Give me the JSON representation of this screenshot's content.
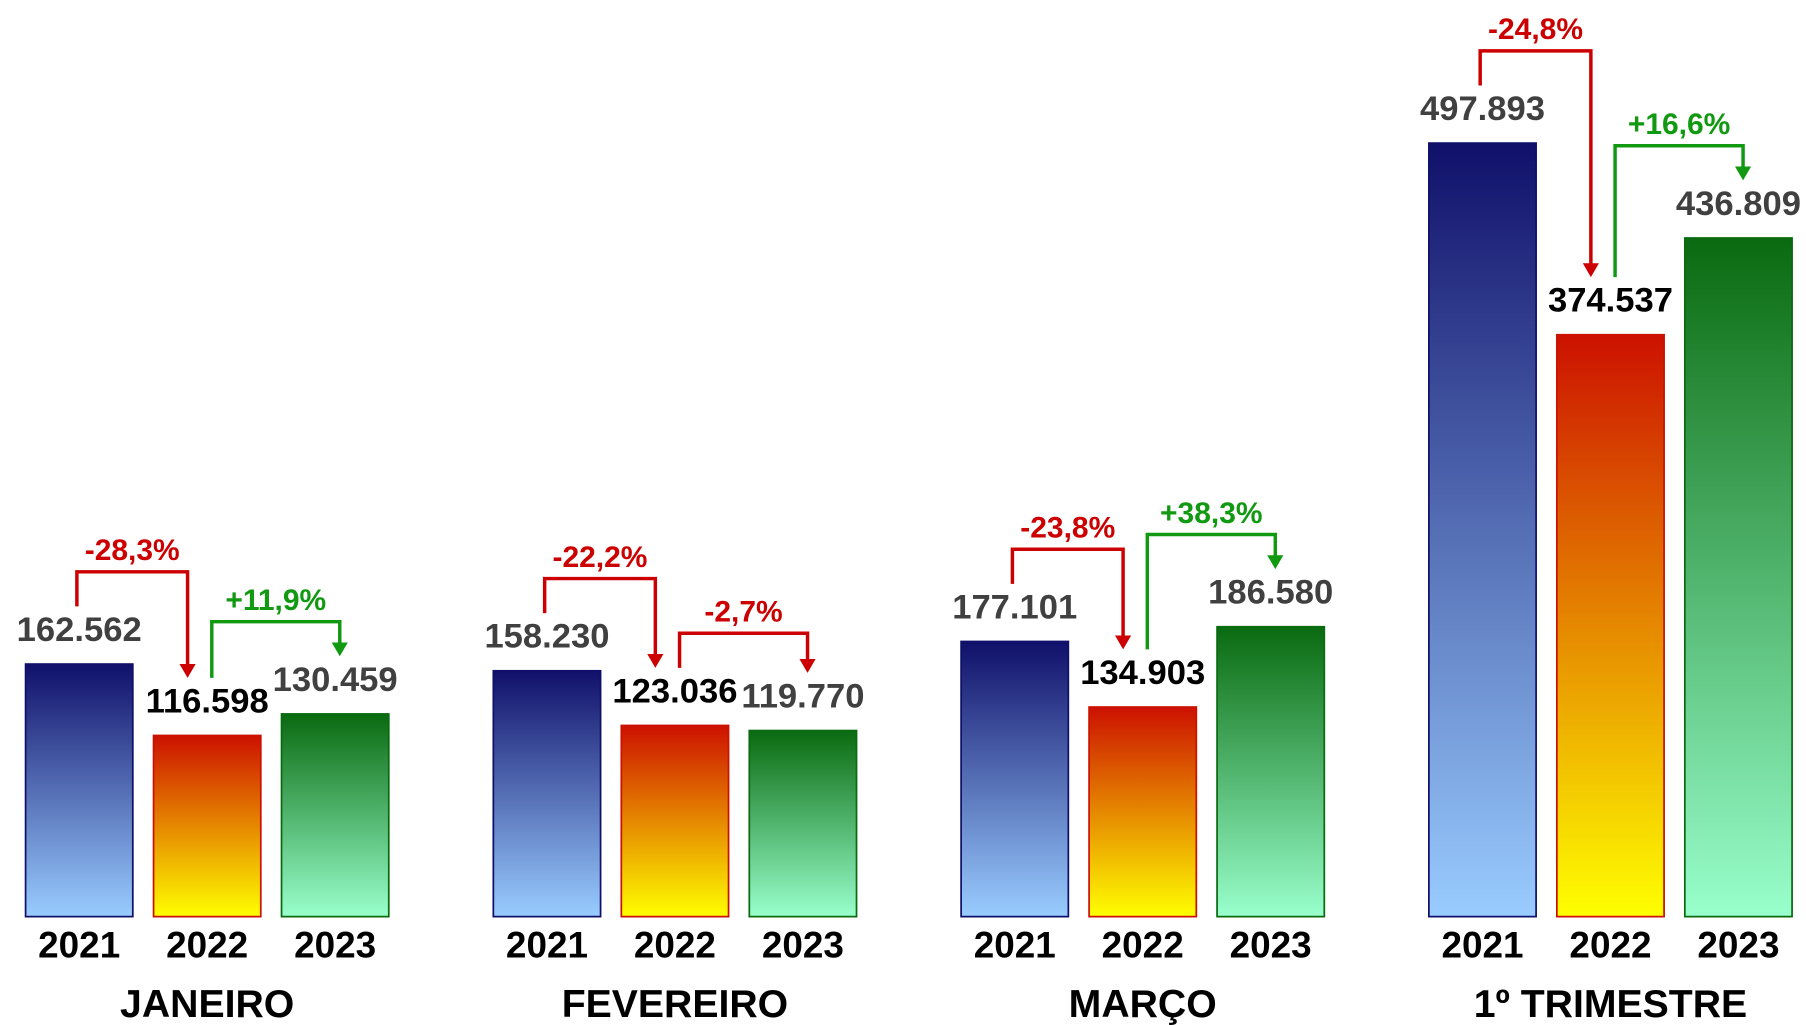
{
  "chart_data": {
    "type": "bar",
    "categories": [
      "JANEIRO",
      "FEVEREIRO",
      "MARÇO",
      "1º TRIMESTRE"
    ],
    "ylim": [
      0,
      590000
    ],
    "series": [
      {
        "name": "2021",
        "gradient": [
          "#10106a",
          "#99ccff"
        ],
        "border": "#10106a",
        "label_color": "#404040",
        "values": [
          162562,
          158230,
          177101,
          497893
        ],
        "value_labels": [
          "162.562",
          "158.230",
          "177.101",
          "497.893"
        ]
      },
      {
        "name": "2022",
        "gradient": [
          "#cc1100",
          "#ffff00"
        ],
        "border": "#cc1100",
        "label_color": "#000000",
        "values": [
          116598,
          123036,
          134903,
          374537
        ],
        "value_labels": [
          "116.598",
          "123.036",
          "134.903",
          "374.537"
        ]
      },
      {
        "name": "2023",
        "gradient": [
          "#0a6a10",
          "#99ffcc"
        ],
        "border": "#0a6a10",
        "label_color": "#404040",
        "values": [
          130459,
          119770,
          186580,
          436809
        ],
        "value_labels": [
          "130.459",
          "119.770",
          "186.580",
          "436.809"
        ]
      }
    ],
    "changes": [
      {
        "values": [
          -28.3,
          -22.2,
          -23.8,
          -24.8
        ],
        "value_labels": [
          "-28,3%",
          "-22,2%",
          "-23,8%",
          "-24,8%"
        ]
      },
      {
        "values": [
          11.9,
          -2.7,
          38.3,
          16.6
        ],
        "value_labels": [
          "+11,9%",
          "-2,7%",
          "+38,3%",
          "+16,6%"
        ]
      }
    ],
    "up_color": "#119911",
    "down_color": "#cc0000"
  }
}
